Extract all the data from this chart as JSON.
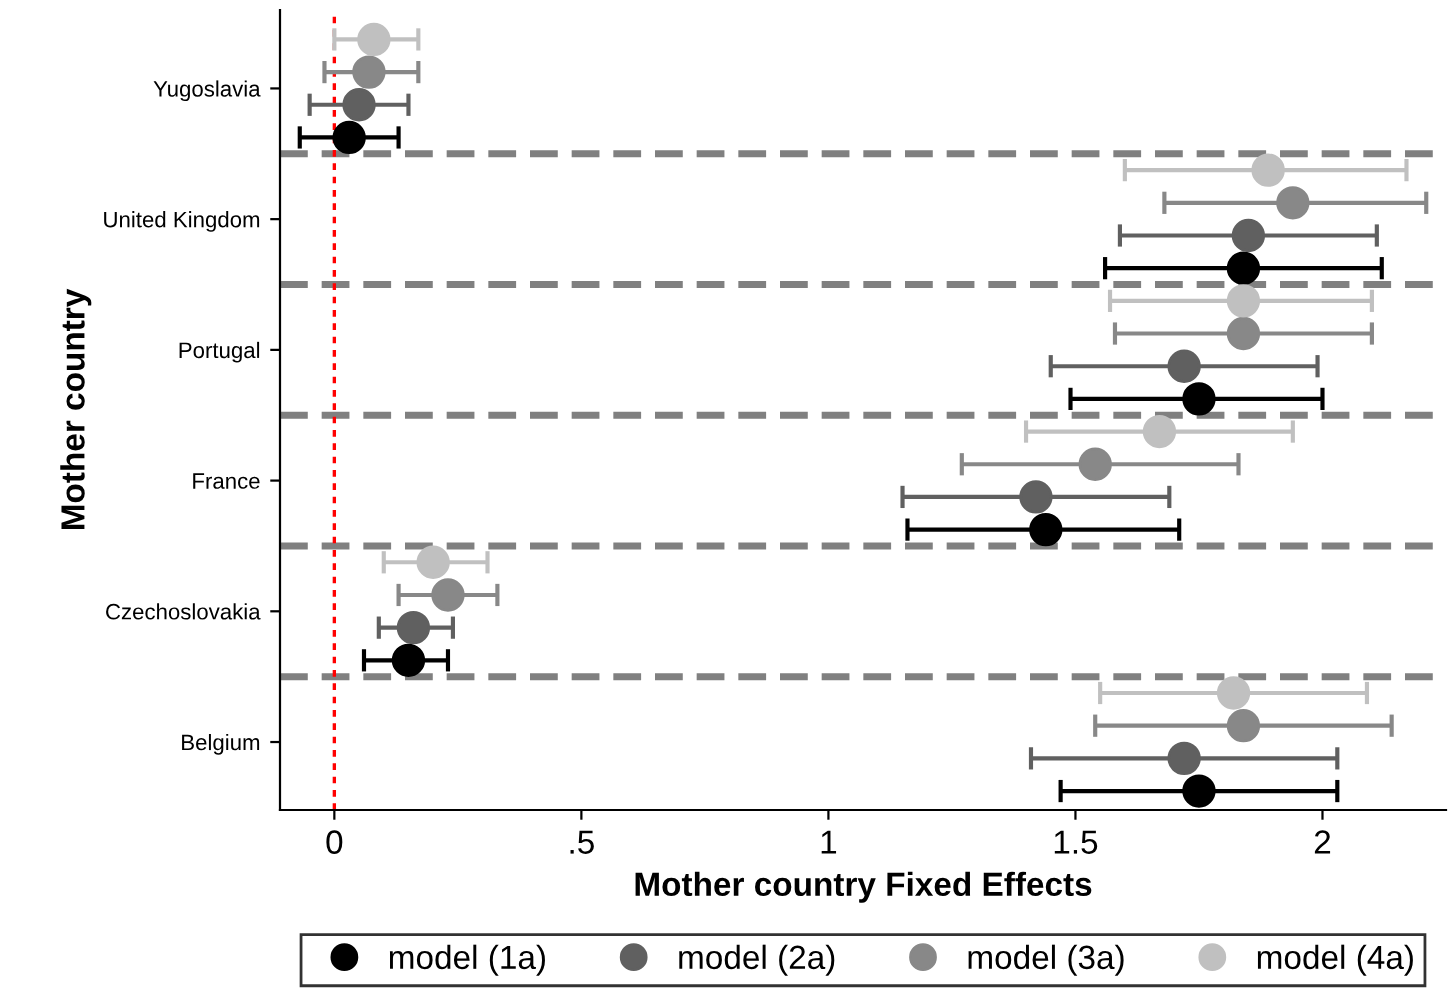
{
  "chart_data": {
    "type": "scatter",
    "orientation": "horizontal",
    "xlabel": "Mother country Fixed Effects",
    "ylabel": "Mother country",
    "categories": [
      "Yugoslavia",
      "United Kingdom",
      "Portugal",
      "France",
      "Czechoslovakia",
      "Belgium"
    ],
    "series": [
      {
        "name": "model (1a)",
        "color": "#000000",
        "values": [
          0.03,
          1.84,
          1.75,
          1.44,
          0.15,
          1.75
        ],
        "errors": [
          [
            -0.07,
            0.13
          ],
          [
            1.56,
            2.12
          ],
          [
            1.49,
            2.0
          ],
          [
            1.16,
            1.71
          ],
          [
            0.06,
            0.23
          ],
          [
            1.47,
            2.03
          ]
        ]
      },
      {
        "name": "model (2a)",
        "color": "#606060",
        "values": [
          0.05,
          1.85,
          1.72,
          1.42,
          0.16,
          1.72
        ],
        "errors": [
          [
            -0.05,
            0.15
          ],
          [
            1.59,
            2.11
          ],
          [
            1.45,
            1.99
          ],
          [
            1.15,
            1.69
          ],
          [
            0.09,
            0.24
          ],
          [
            1.41,
            2.03
          ]
        ]
      },
      {
        "name": "model (3a)",
        "color": "#888888",
        "values": [
          0.07,
          1.94,
          1.84,
          1.54,
          0.23,
          1.84
        ],
        "errors": [
          [
            -0.02,
            0.17
          ],
          [
            1.68,
            2.21
          ],
          [
            1.58,
            2.1
          ],
          [
            1.27,
            1.83
          ],
          [
            0.13,
            0.33
          ],
          [
            1.54,
            2.14
          ]
        ]
      },
      {
        "name": "model (4a)",
        "color": "#c0c0c0",
        "values": [
          0.08,
          1.89,
          1.84,
          1.67,
          0.2,
          1.82
        ],
        "errors": [
          [
            0.0,
            0.17
          ],
          [
            1.6,
            2.17
          ],
          [
            1.57,
            2.1
          ],
          [
            1.4,
            1.94
          ],
          [
            0.1,
            0.31
          ],
          [
            1.55,
            2.09
          ]
        ]
      }
    ],
    "xlim": [
      -0.11,
      2.25
    ],
    "xticks": [
      0,
      {
        "value": 0.5,
        "label": ".5"
      },
      1,
      1.5,
      2
    ],
    "ref_lines": [
      {
        "axis": "x",
        "value": 0,
        "color": "#ff0000",
        "line_style": "dotted"
      }
    ],
    "grid": false,
    "legend": "bottom",
    "marker": "circle"
  }
}
